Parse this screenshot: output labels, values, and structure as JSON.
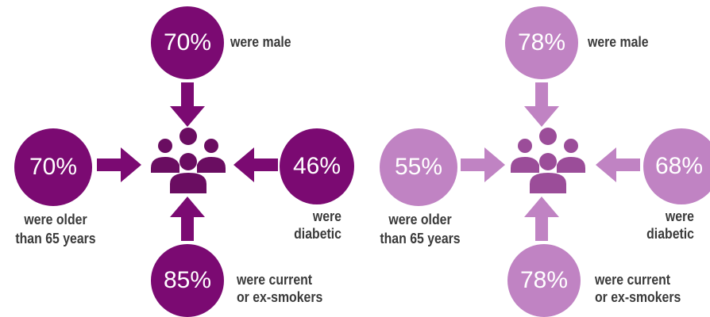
{
  "colors": {
    "left_accent": "#7b0a72",
    "left_people": "#6a0d61",
    "right_accent": "#c083c3",
    "right_people": "#9b4d99",
    "label_text": "#3a3a3a"
  },
  "panels": [
    {
      "male_value": "70%",
      "male_label": "were male",
      "age_value": "70%",
      "age_label_1": "were older",
      "age_label_2": "than 65 years",
      "diabetic_value": "46%",
      "diabetic_label_1": "were",
      "diabetic_label_2": "diabetic",
      "smoker_value": "85%",
      "smoker_label_1": "were current",
      "smoker_label_2": "or ex-smokers",
      "center_icon": "people-group-icon"
    },
    {
      "male_value": "78%",
      "male_label": "were male",
      "age_value": "55%",
      "age_label_1": "were older",
      "age_label_2": "than 65 years",
      "diabetic_value": "68%",
      "diabetic_label_1": "were",
      "diabetic_label_2": "diabetic",
      "smoker_value": "78%",
      "smoker_label_1": "were current",
      "smoker_label_2": "or ex-smokers",
      "center_icon": "people-group-icon"
    }
  ]
}
